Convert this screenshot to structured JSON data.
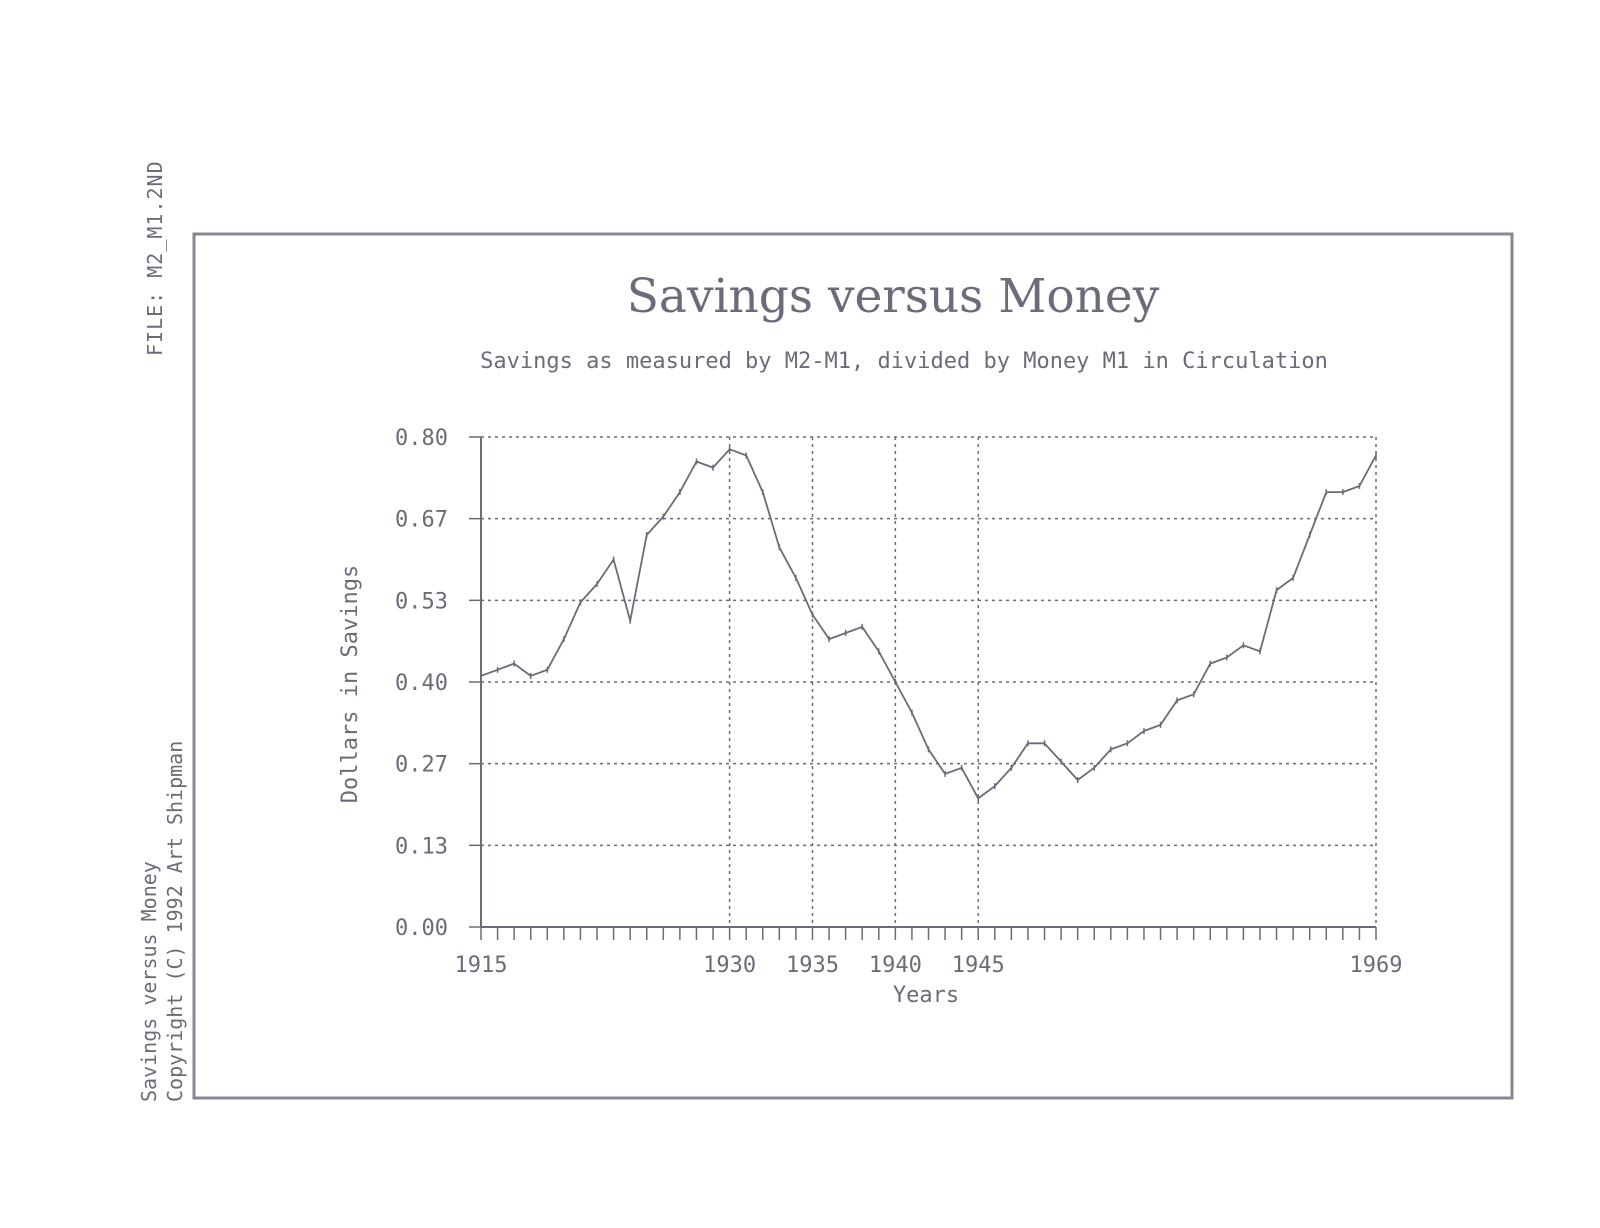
{
  "file_label": "FILE: M2_M1.2ND",
  "side_caption": {
    "title": "Savings versus Money",
    "copyright": "Copyright (C) 1992 Art Shipman"
  },
  "colors": {
    "ink": "#6e6a7a",
    "frame": "#8a8595",
    "background": "#ffffff"
  },
  "chart_data": {
    "type": "line",
    "title": "Savings versus Money",
    "subtitle": "Savings as measured by M2-M1, divided by Money M1 in Circulation",
    "xlabel": "Years",
    "ylabel": "Dollars in Savings",
    "xlim": [
      1915,
      1969
    ],
    "ylim": [
      0.0,
      0.8
    ],
    "x_tick_labels": [
      "1915",
      "1930",
      "1935",
      "1940",
      "1945",
      "1969"
    ],
    "x_vertical_gridlines": [
      1930,
      1935,
      1940,
      1945,
      1969
    ],
    "y_tick_labels": [
      "0.00",
      "0.13",
      "0.27",
      "0.40",
      "0.53",
      "0.67",
      "0.80"
    ],
    "grid": true,
    "series": [
      {
        "x": [
          1915,
          1916,
          1917,
          1918,
          1919,
          1920,
          1921,
          1922,
          1923,
          1924,
          1925,
          1926,
          1927,
          1928,
          1929,
          1930,
          1931,
          1932,
          1933,
          1934,
          1935,
          1936,
          1937,
          1938,
          1939,
          1940,
          1941,
          1942,
          1943,
          1944,
          1945,
          1946,
          1947,
          1948,
          1949,
          1950,
          1951,
          1952,
          1953,
          1954,
          1955,
          1956,
          1957,
          1958,
          1959,
          1960,
          1961,
          1962,
          1963,
          1964,
          1965,
          1966,
          1967,
          1968,
          1969
        ],
        "values": [
          0.41,
          0.42,
          0.43,
          0.41,
          0.42,
          0.47,
          0.53,
          0.56,
          0.6,
          0.5,
          0.64,
          0.67,
          0.71,
          0.76,
          0.75,
          0.78,
          0.77,
          0.71,
          0.62,
          0.57,
          0.51,
          0.47,
          0.48,
          0.49,
          0.45,
          0.4,
          0.35,
          0.29,
          0.25,
          0.26,
          0.21,
          0.23,
          0.26,
          0.3,
          0.3,
          0.27,
          0.24,
          0.26,
          0.29,
          0.3,
          0.32,
          0.33,
          0.37,
          0.38,
          0.43,
          0.44,
          0.46,
          0.45,
          0.55,
          0.57,
          0.64,
          0.71,
          0.71,
          0.72,
          0.77
        ]
      }
    ]
  }
}
